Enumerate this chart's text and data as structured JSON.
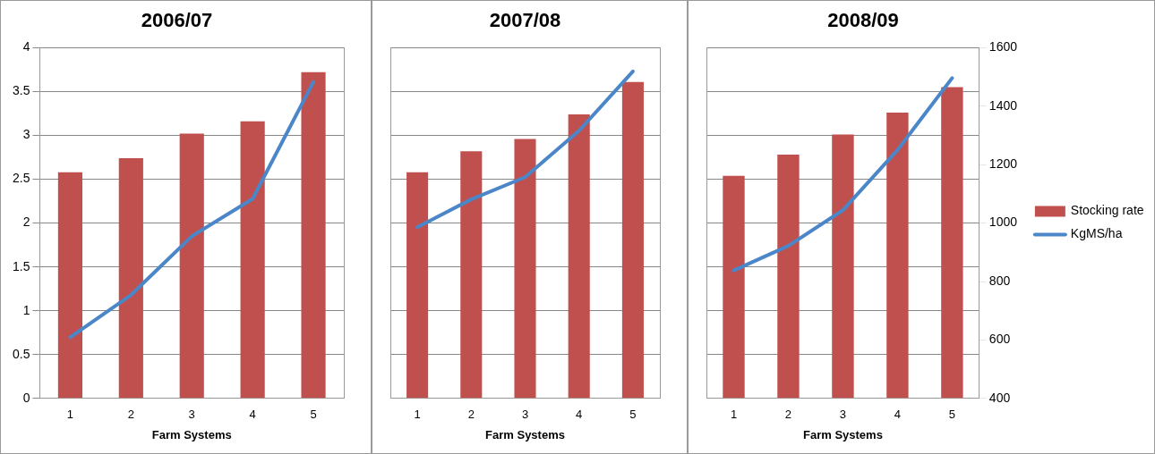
{
  "chart_data": [
    {
      "type": "bar",
      "title": "2006/07",
      "xlabel": "Farm Systems",
      "categories": [
        "1",
        "2",
        "3",
        "4",
        "5"
      ],
      "series": [
        {
          "color": "#c0504d",
          "values": [
            2.58,
            2.74,
            3.02,
            3.16,
            3.72
          ]
        },
        {
          "type": "line",
          "axis": "y2",
          "color": "#4a86c8",
          "values": [
            609,
            754,
            955,
            1083,
            1483
          ]
        }
      ],
      "ylim": [
        0,
        4
      ],
      "yticks": [
        0,
        0.5,
        1,
        1.5,
        2,
        2.5,
        3,
        3.5,
        4
      ],
      "y2lim": [
        400,
        1600
      ],
      "grid": "y",
      "tick_labels": "xy",
      "legend": false
    },
    {
      "type": "bar",
      "title": "2007/08",
      "xlabel": "Farm Systems",
      "categories": [
        "1",
        "2",
        "3",
        "4",
        "5"
      ],
      "series": [
        {
          "color": "#c0504d",
          "values": [
            2.58,
            2.82,
            2.96,
            3.24,
            3.61
          ]
        },
        {
          "type": "line",
          "axis": "y2",
          "color": "#4a86c8",
          "values": [
            986,
            1081,
            1157,
            1316,
            1519
          ]
        }
      ],
      "ylim": [
        0,
        4
      ],
      "y2lim": [
        400,
        1600
      ],
      "grid": "y",
      "tick_labels": "x",
      "legend": false
    },
    {
      "type": "bar",
      "title": "2008/09",
      "xlabel": "Farm Systems",
      "categories": [
        "1",
        "2",
        "3",
        "4",
        "5"
      ],
      "series": [
        {
          "name": "Stocking rate",
          "color": "#c0504d",
          "values": [
            2.54,
            2.78,
            3.01,
            3.26,
            3.55
          ]
        },
        {
          "name": "KgMS/ha",
          "type": "line",
          "axis": "y2",
          "color": "#4a86c8",
          "values": [
            838,
            922,
            1044,
            1250,
            1496
          ]
        }
      ],
      "ylim": [
        0,
        4
      ],
      "y2lim": [
        400,
        1600
      ],
      "y2ticks": [
        400,
        600,
        800,
        1000,
        1200,
        1400,
        1600
      ],
      "grid": "y",
      "tick_labels": "xy2",
      "legend": "right"
    }
  ]
}
